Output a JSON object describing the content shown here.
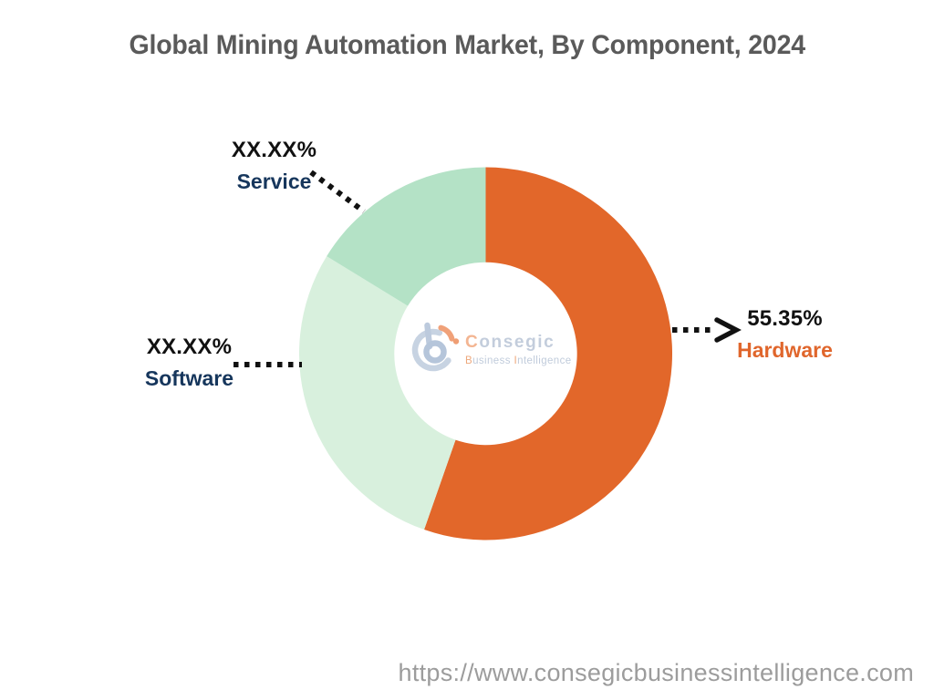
{
  "chart_data": {
    "type": "pie",
    "subtype": "donut",
    "title": "Global Mining Automation Market, By Component, 2024",
    "direction": "clockwise",
    "start_angle_deg": 0,
    "inner_radius_ratio": 0.49,
    "legend_position": "none",
    "segments": [
      {
        "name": "Hardware",
        "display_value": "55.35%",
        "value_pct": 55.35,
        "color": "#E2672A",
        "label_color": "#E0662C"
      },
      {
        "name": "Software",
        "display_value": "XX.XX%",
        "value_pct": 28.4,
        "color": "#D8F0DD",
        "label_color": "#16365C"
      },
      {
        "name": "Service",
        "display_value": "XX.XX%",
        "value_pct": 16.25,
        "color": "#B4E2C6",
        "label_color": "#16365C"
      }
    ]
  },
  "logo": {
    "brand_c": "C",
    "brand_rest": "onsegic",
    "sub_b": "B",
    "sub_rest1": "usiness",
    "sub_i": "I",
    "sub_rest2": "ntelligence"
  },
  "footer": {
    "url": "https://www.consegicbusinessintelligence.com"
  },
  "colors": {
    "title_text": "#5A5A5A",
    "value_text": "#111111",
    "navy_label": "#16365C",
    "orange_label": "#E0662C",
    "connector": "#111111",
    "url_text": "#9C9C9C",
    "background": "#FFFFFF"
  }
}
